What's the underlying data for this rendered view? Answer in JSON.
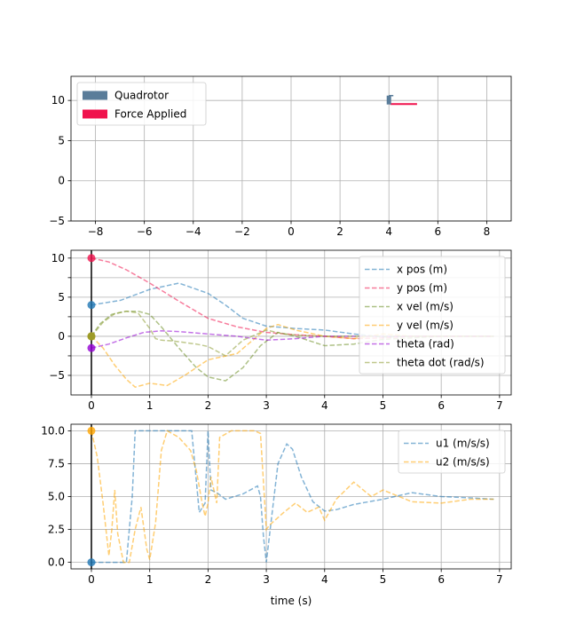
{
  "chart_data": [
    {
      "type": "scatter",
      "title": "",
      "xlabel": "",
      "ylabel": "",
      "xlim": [
        -9,
        9
      ],
      "ylim": [
        -5,
        13
      ],
      "xticks": [
        -8,
        -6,
        -4,
        -2,
        0,
        2,
        4,
        6,
        8
      ],
      "yticks": [
        -5,
        0,
        5,
        10
      ],
      "grid": true,
      "legend_position": "top-left",
      "legend": [
        {
          "name": "Quadrotor",
          "color": "#5a7d9a"
        },
        {
          "name": "Force Applied",
          "color": "#f0134d"
        }
      ],
      "quadrotor": {
        "x": 4.0,
        "y": 10.0,
        "body_ymin": 9.5,
        "body_ymax": 10.6
      },
      "force": {
        "x0": 4.05,
        "x1": 5.15,
        "y": 9.55
      }
    },
    {
      "type": "line",
      "title": "",
      "xlabel": "",
      "ylabel": "",
      "xlim": [
        -0.35,
        7.2
      ],
      "ylim": [
        -7.5,
        11
      ],
      "xticks": [
        0,
        1,
        2,
        3,
        4,
        5,
        6,
        7
      ],
      "yticks": [
        -5,
        -2.5,
        0,
        2.5,
        5,
        7.5,
        10
      ],
      "ytick_labels": [
        "−5",
        "",
        "0",
        "",
        "5",
        "",
        "10"
      ],
      "grid": true,
      "legend_position": "top-right",
      "current_time": 0,
      "series": [
        {
          "name": "x pos (m)",
          "color": "#1f77b4",
          "x": [
            0,
            0.5,
            1,
            1.5,
            2,
            2.3,
            2.6,
            3,
            3.5,
            4,
            4.5,
            5,
            5.5,
            6,
            6.5,
            6.9
          ],
          "values": [
            4,
            4.6,
            6.0,
            6.8,
            5.5,
            4.0,
            2.3,
            1.3,
            1.0,
            0.8,
            0.3,
            -0.1,
            0.0,
            0.0,
            0.0,
            0.0
          ]
        },
        {
          "name": "y pos (m)",
          "color": "#f0134d",
          "x": [
            0,
            0.3,
            0.6,
            1,
            1.5,
            2,
            2.5,
            3,
            3.5,
            4,
            4.5,
            5,
            5.5,
            6,
            6.5,
            6.9
          ],
          "values": [
            10,
            9.5,
            8.5,
            6.8,
            4.5,
            2.3,
            1.2,
            0.5,
            0.2,
            0.0,
            -0.3,
            -0.2,
            0.0,
            0.0,
            0.0,
            0.0
          ]
        },
        {
          "name": "x vel (m/s)",
          "color": "#6b8e23",
          "x": [
            0,
            0.15,
            0.35,
            0.6,
            0.8,
            1.0,
            1.2,
            1.5,
            1.8,
            2.0,
            2.3,
            2.6,
            2.9,
            3.2,
            3.5,
            4.0,
            4.5,
            5.0,
            5.5,
            6.0,
            6.5,
            6.9
          ],
          "values": [
            0,
            1.6,
            2.8,
            3.2,
            3.2,
            2.8,
            1.2,
            -1.5,
            -4.0,
            -5.2,
            -5.7,
            -4.0,
            -1.2,
            0.5,
            0.0,
            -1.2,
            -1.0,
            -0.4,
            -0.2,
            0.0,
            0.0,
            0.0
          ]
        },
        {
          "name": "y vel (m/s)",
          "color": "#ffa500",
          "x": [
            0,
            0.2,
            0.4,
            0.6,
            0.75,
            1.0,
            1.3,
            1.6,
            2.0,
            2.5,
            3.0,
            3.2,
            3.5,
            4.0,
            4.5,
            5.0,
            5.5,
            6.0,
            6.5,
            6.9
          ],
          "values": [
            0,
            -1.5,
            -3.7,
            -5.5,
            -6.5,
            -6.0,
            -6.3,
            -5.0,
            -3.0,
            -2.2,
            1.0,
            1.5,
            0.8,
            0.0,
            -0.3,
            0.3,
            0.0,
            0.0,
            0.0,
            0.0
          ]
        },
        {
          "name": "theta (rad)",
          "color": "#9400d3",
          "x": [
            0,
            0.3,
            0.6,
            0.9,
            1.2,
            1.5,
            2.0,
            2.5,
            3.0,
            3.5,
            4.0,
            4.5,
            5.0,
            5.5,
            6.0,
            6.5,
            6.9
          ],
          "values": [
            -1.5,
            -1.0,
            -0.2,
            0.5,
            0.7,
            0.6,
            0.3,
            0.0,
            -0.5,
            -0.3,
            0.0,
            0.0,
            0.0,
            0.0,
            0.0,
            0.0,
            0.0
          ]
        },
        {
          "name": "theta dot (rad/s)",
          "color": "#8b9a2f",
          "x": [
            0,
            0.2,
            0.4,
            0.6,
            0.8,
            1.0,
            1.1,
            1.2,
            1.4,
            1.8,
            2.0,
            2.3,
            2.6,
            3.0,
            3.3,
            3.6,
            4.0,
            4.5,
            5.0,
            5.5,
            6.0,
            6.5,
            6.9
          ],
          "values": [
            0,
            1.8,
            2.9,
            3.2,
            3.0,
            1.0,
            -0.3,
            -0.5,
            -0.6,
            -1.0,
            -1.3,
            -2.5,
            -0.5,
            0.8,
            0.3,
            0.1,
            0.0,
            0.0,
            0.0,
            0.0,
            0.0,
            0.0,
            0.0
          ]
        }
      ]
    },
    {
      "type": "line",
      "title": "",
      "xlabel": "time (s)",
      "ylabel": "",
      "xlim": [
        -0.35,
        7.2
      ],
      "ylim": [
        -0.5,
        10.5
      ],
      "xticks": [
        0,
        1,
        2,
        3,
        4,
        5,
        6,
        7
      ],
      "yticks": [
        0.0,
        2.5,
        5.0,
        7.5,
        10.0
      ],
      "ytick_labels": [
        "0.0",
        "2.5",
        "5.0",
        "7.5",
        "10.0"
      ],
      "grid": true,
      "legend_position": "top-right",
      "current_time": 0,
      "series": [
        {
          "name": "u1 (m/s/s)",
          "color": "#1f77b4",
          "x": [
            0,
            0.5,
            0.6,
            0.7,
            0.75,
            1.0,
            1.5,
            1.72,
            1.85,
            1.95,
            2.0,
            2.05,
            2.15,
            2.3,
            2.6,
            2.85,
            2.9,
            2.95,
            3.0,
            3.08,
            3.2,
            3.35,
            3.45,
            3.6,
            3.8,
            4.0,
            4.2,
            4.5,
            5.0,
            5.5,
            6.0,
            6.5,
            6.9
          ],
          "values": [
            0,
            0,
            0,
            5,
            10,
            10,
            10,
            10,
            3.8,
            4.5,
            10,
            5.5,
            5.3,
            4.8,
            5.2,
            5.8,
            5.0,
            2.0,
            0,
            3.0,
            7.5,
            9.0,
            8.6,
            6.5,
            4.6,
            3.9,
            4.0,
            4.4,
            4.8,
            5.3,
            5.0,
            4.9,
            4.8
          ]
        },
        {
          "name": "u2 (m/s/s)",
          "color": "#ffa500",
          "x": [
            0,
            0.1,
            0.2,
            0.3,
            0.35,
            0.4,
            0.45,
            0.55,
            0.65,
            0.75,
            0.85,
            0.95,
            1.0,
            1.1,
            1.2,
            1.3,
            1.5,
            1.7,
            1.8,
            1.9,
            1.95,
            2.0,
            2.05,
            2.1,
            2.15,
            2.2,
            2.4,
            2.6,
            2.8,
            2.9,
            3.0,
            3.05,
            3.1,
            3.3,
            3.5,
            3.7,
            3.9,
            4.0,
            4.2,
            4.5,
            4.8,
            5.0,
            5.5,
            6.0,
            6.5,
            6.9
          ],
          "values": [
            10,
            8,
            4.5,
            0.5,
            2.5,
            5.5,
            2.2,
            0,
            0,
            2.5,
            4.2,
            1.0,
            0.2,
            3.0,
            8.5,
            10,
            9.5,
            8.5,
            7.0,
            4.5,
            3.5,
            4.5,
            6.5,
            5.5,
            4.5,
            9.5,
            10,
            10,
            10,
            9.8,
            2.5,
            2.8,
            3.0,
            3.8,
            4.5,
            3.8,
            4.2,
            3.2,
            4.8,
            6.1,
            5.0,
            5.5,
            4.6,
            4.5,
            4.8,
            4.8
          ]
        }
      ]
    }
  ]
}
